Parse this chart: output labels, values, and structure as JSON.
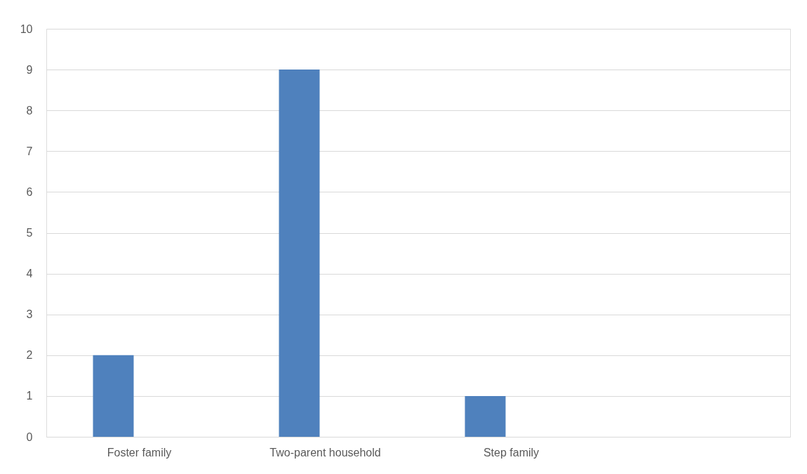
{
  "chart_data": {
    "type": "bar",
    "categories": [
      "Foster family",
      "Two-parent household",
      "Step family",
      null
    ],
    "values": [
      2,
      9,
      1,
      null
    ],
    "color": "#4f81bd",
    "ylim": [
      0,
      10
    ],
    "yticks": [
      0,
      1,
      2,
      3,
      4,
      5,
      6,
      7,
      8,
      9,
      10
    ],
    "grid": "y"
  }
}
